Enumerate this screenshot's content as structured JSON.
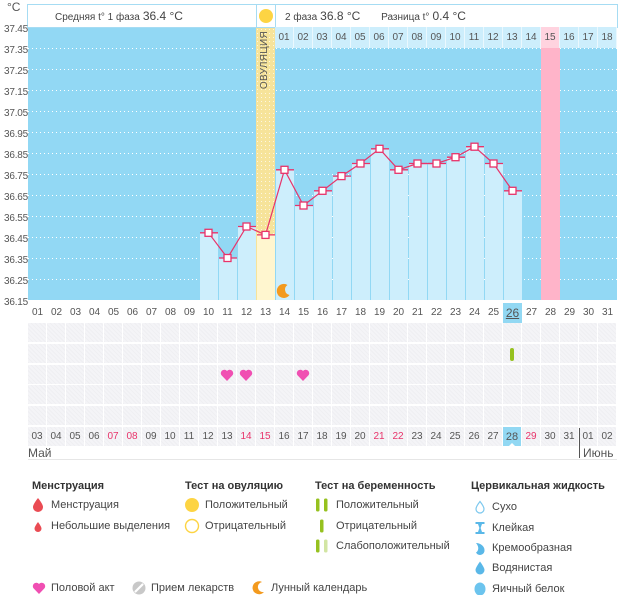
{
  "y_unit": "°C",
  "header": {
    "phase1_label": "Средняя t° 1 фаза",
    "phase1_value": "36.4 °C",
    "phase2_label": "2 фаза",
    "phase2_value": "36.8 °C",
    "diff_label": "Разница t°",
    "diff_value": "0.4 °C",
    "ovulation_icon": "sun-circle-icon"
  },
  "ovulation_label": "ОВУЛЯЦИЯ",
  "chart_data": {
    "type": "line",
    "title": "",
    "xlabel": "",
    "ylabel": "°C",
    "ylim": [
      36.15,
      37.45
    ],
    "ytick_step": 0.1,
    "grid": true,
    "yticks": [
      "37.45",
      "37.35",
      "37.25",
      "37.15",
      "37.05",
      "36.95",
      "36.85",
      "36.75",
      "36.65",
      "36.55",
      "36.45",
      "36.35",
      "36.25",
      "36.15"
    ],
    "x": [
      "01",
      "02",
      "03",
      "04",
      "05",
      "06",
      "07",
      "08",
      "09",
      "10",
      "11",
      "12",
      "13",
      "14",
      "15",
      "16",
      "17",
      "18",
      "19",
      "20",
      "21",
      "22",
      "23",
      "24",
      "25",
      "26",
      "27",
      "28",
      "29",
      "30",
      "31"
    ],
    "series": [
      {
        "style": "line-with-bars",
        "values": [
          null,
          null,
          null,
          null,
          null,
          null,
          null,
          null,
          null,
          36.47,
          36.35,
          36.5,
          36.46,
          36.77,
          36.6,
          36.67,
          36.74,
          36.8,
          36.87,
          36.77,
          36.8,
          36.8,
          36.83,
          36.88,
          36.8,
          36.67,
          null,
          null,
          null,
          null,
          null
        ]
      }
    ],
    "ovulation_day": 13,
    "current_day": 26,
    "highlighted_day": 28,
    "post_ovulation_start_day": 14,
    "post_ovulation_labels": [
      "01",
      "02",
      "03",
      "04",
      "05",
      "06",
      "07",
      "08",
      "09",
      "10",
      "11",
      "12",
      "13",
      "14",
      "15",
      "16",
      "17",
      "18"
    ]
  },
  "markers": {
    "intercourse_days": [
      11,
      12,
      15
    ],
    "pregnancy_tests": [
      {
        "day": 26,
        "result": "negative"
      }
    ],
    "lunar_days": [
      14
    ]
  },
  "calendar": {
    "dates": [
      {
        "d": "03"
      },
      {
        "d": "04"
      },
      {
        "d": "05"
      },
      {
        "d": "06"
      },
      {
        "d": "07",
        "red": true
      },
      {
        "d": "08",
        "red": true
      },
      {
        "d": "09"
      },
      {
        "d": "10"
      },
      {
        "d": "11"
      },
      {
        "d": "12"
      },
      {
        "d": "13"
      },
      {
        "d": "14",
        "red": true
      },
      {
        "d": "15",
        "red": true
      },
      {
        "d": "16"
      },
      {
        "d": "17"
      },
      {
        "d": "18"
      },
      {
        "d": "19"
      },
      {
        "d": "20"
      },
      {
        "d": "21",
        "red": true
      },
      {
        "d": "22",
        "red": true
      },
      {
        "d": "23"
      },
      {
        "d": "24"
      },
      {
        "d": "25"
      },
      {
        "d": "26"
      },
      {
        "d": "27"
      },
      {
        "d": "28",
        "today": true
      },
      {
        "d": "29",
        "red": true
      },
      {
        "d": "30"
      },
      {
        "d": "31"
      },
      {
        "d": "01"
      },
      {
        "d": "02"
      }
    ],
    "months": [
      {
        "label": "Май",
        "start_index": 1
      },
      {
        "label": "Июнь",
        "start_index": 30
      }
    ]
  },
  "legend": {
    "menstruation": {
      "title": "Менструация",
      "items": [
        {
          "icon": "blood-drop-icon",
          "label": "Менструация"
        },
        {
          "icon": "small-blood-drop-icon",
          "label": "Небольшие выделения"
        }
      ]
    },
    "ovulation_test": {
      "title": "Тест на овуляцию",
      "items": [
        {
          "icon": "filled-yellow-circle-icon",
          "label": "Положительный"
        },
        {
          "icon": "outline-yellow-circle-icon",
          "label": "Отрицательный"
        }
      ]
    },
    "pregnancy_test": {
      "title": "Тест на беременность",
      "items": [
        {
          "icon": "two-green-bars-icon",
          "label": "Положительный"
        },
        {
          "icon": "one-green-bar-icon",
          "label": "Отрицательный"
        },
        {
          "icon": "faint-second-bar-icon",
          "label": "Слабоположительный"
        }
      ]
    },
    "cervical_fluid": {
      "title": "Цервикальная жидкость",
      "items": [
        {
          "icon": "outline-drop-icon",
          "label": "Сухо"
        },
        {
          "icon": "hourglass-icon",
          "label": "Клейкая"
        },
        {
          "icon": "cream-drop-icon",
          "label": "Кремообразная"
        },
        {
          "icon": "water-drop-icon",
          "label": "Водянистая"
        },
        {
          "icon": "egg-white-icon",
          "label": "Яичный белок"
        }
      ]
    },
    "other": [
      {
        "icon": "heart-icon",
        "label": "Половой акт"
      },
      {
        "icon": "pill-icon",
        "label": "Прием лекарств"
      },
      {
        "icon": "moon-icon",
        "label": "Лунный календарь"
      }
    ]
  },
  "colors": {
    "plot_bg": "#92d8f4",
    "bar": "#cdeefc",
    "ovulation_bar": "#fff6cf",
    "ovulation_stripe": "#f6e39a",
    "highlight_day": "#ffb4c9",
    "line": "#e8336a",
    "moon": "#f39a1e",
    "heart": "#f04fb2",
    "pregnancy_bar": "#96c11f",
    "pregnancy_bar_faint": "#d2e5a3",
    "ovulation_yellow": "#fdd443",
    "blood": "#ea4b53",
    "fluid": "#5ab8e8",
    "pill": "#c8c8c8"
  }
}
